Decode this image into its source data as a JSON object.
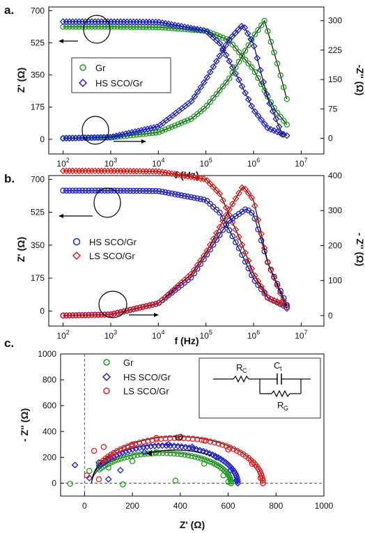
{
  "chart_data": [
    {
      "panel_label": "a.",
      "type": "scatter",
      "xlabel": "f (Hz)",
      "ylabel_left": "Z' (Ω)",
      "ylabel_right": "-Z'' (Ω)",
      "xscale": "log",
      "xlim": [
        50,
        30000000
      ],
      "ylim_left": [
        -80,
        720
      ],
      "ylim_right": [
        -40,
        335
      ],
      "x_tick_labels": [
        "10^2",
        "10^3",
        "10^4",
        "10^5",
        "10^6",
        "10^7"
      ],
      "y_left_tick_labels": [
        "0",
        "175",
        "350",
        "525",
        "700"
      ],
      "y_right_tick_labels": [
        "0",
        "75",
        "150",
        "225",
        "300"
      ],
      "legend_position": "middle-left",
      "series": [
        {
          "name": "Gr",
          "color": "#1e9e1e",
          "marker": "circle",
          "axis": "left",
          "quantity": "Z'",
          "x": [
            100,
            1000,
            10000,
            100000,
            300000,
            1000000,
            2000000,
            3000000,
            5000000
          ],
          "y": [
            612,
            612,
            610,
            590,
            540,
            380,
            230,
            150,
            80
          ]
        },
        {
          "name": "HS SCO/Gr",
          "color": "#2222cc",
          "marker": "diamond",
          "axis": "left",
          "quantity": "Z'",
          "x": [
            100,
            1000,
            10000,
            100000,
            200000,
            500000,
            1000000,
            2000000,
            5000000
          ],
          "y": [
            640,
            640,
            638,
            590,
            520,
            320,
            160,
            60,
            20
          ]
        },
        {
          "name": "Gr",
          "color": "#1e9e1e",
          "marker": "circle",
          "axis": "right",
          "quantity": "-Z''",
          "x": [
            100,
            1000,
            10000,
            50000,
            100000,
            300000,
            1000000,
            1700000,
            3000000,
            5000000
          ],
          "y": [
            0,
            2,
            15,
            50,
            80,
            150,
            260,
            300,
            200,
            100
          ]
        },
        {
          "name": "HS SCO/Gr",
          "color": "#2222cc",
          "marker": "diamond",
          "axis": "right",
          "quantity": "-Z''",
          "x": [
            100,
            1000,
            10000,
            50000,
            100000,
            300000,
            600000,
            1000000,
            2000000,
            4000000
          ],
          "y": [
            0,
            3,
            30,
            95,
            150,
            250,
            290,
            240,
            100,
            10
          ]
        }
      ]
    },
    {
      "panel_label": "b.",
      "type": "scatter",
      "xlabel": "f (Hz)",
      "ylabel_left": "Z' (Ω)",
      "ylabel_right": "- Z'' (Ω)",
      "xscale": "log",
      "xlim": [
        50,
        30000000
      ],
      "ylim_left": [
        -80,
        720
      ],
      "ylim_right": [
        -30,
        400
      ],
      "x_tick_labels": [
        "10^2",
        "10^3",
        "10^4",
        "10^5",
        "10^6",
        "10^7"
      ],
      "y_left_tick_labels": [
        "0",
        "175",
        "350",
        "525",
        "700"
      ],
      "y_right_tick_labels": [
        "0",
        "100",
        "200",
        "300",
        "400"
      ],
      "legend_position": "middle-left",
      "series": [
        {
          "name": "HS SCO/Gr",
          "color": "#2222cc",
          "marker": "circle",
          "axis": "left",
          "quantity": "Z'",
          "x": [
            100,
            1000,
            10000,
            100000,
            200000,
            500000,
            1000000,
            2000000,
            5000000
          ],
          "y": [
            640,
            640,
            638,
            590,
            520,
            330,
            170,
            70,
            20
          ]
        },
        {
          "name": "LS SCO/Gr",
          "color": "#e02020",
          "marker": "diamond",
          "axis": "left",
          "quantity": "Z'",
          "x": [
            100,
            1000,
            10000,
            100000,
            200000,
            500000,
            1000000,
            2000000,
            5000000
          ],
          "y": [
            745,
            745,
            742,
            700,
            620,
            390,
            200,
            70,
            30
          ]
        },
        {
          "name": "HS SCO/Gr",
          "color": "#2222cc",
          "marker": "circle",
          "axis": "right",
          "quantity": "-Z''",
          "x": [
            100,
            1000,
            10000,
            50000,
            100000,
            300000,
            700000,
            1000000,
            2000000,
            5000000
          ],
          "y": [
            0,
            3,
            35,
            110,
            170,
            270,
            305,
            290,
            150,
            30
          ]
        },
        {
          "name": "LS SCO/Gr",
          "color": "#e02020",
          "marker": "diamond",
          "axis": "right",
          "quantity": "-Z''",
          "x": [
            100,
            1000,
            10000,
            50000,
            100000,
            300000,
            600000,
            1000000,
            2000000,
            5000000
          ],
          "y": [
            0,
            3,
            35,
            120,
            180,
            300,
            370,
            330,
            150,
            20
          ]
        }
      ]
    },
    {
      "panel_label": "c.",
      "type": "scatter",
      "xlabel": "Z' (Ω)",
      "ylabel": "- Z'' (Ω)",
      "xlim": [
        -100,
        1000
      ],
      "ylim": [
        -100,
        1000
      ],
      "x_tick_labels": [
        "0",
        "200",
        "400",
        "600",
        "800",
        "1000"
      ],
      "y_tick_labels": [
        "0",
        "200",
        "400",
        "600",
        "800",
        "1000"
      ],
      "legend_position": "top-center",
      "annotation": "ω",
      "circuit_labels": [
        "R",
        "C",
        "C",
        "t",
        "R",
        "G"
      ],
      "series": [
        {
          "name": "Gr",
          "color": "#1e9e1e",
          "marker": "circle",
          "x": [
            -60,
            20,
            60,
            100,
            160,
            200,
            300,
            380,
            500,
            580,
            600,
            612
          ],
          "y": [
            -5,
            95,
            140,
            120,
            -10,
            170,
            240,
            20,
            150,
            60,
            10,
            0
          ]
        },
        {
          "name": "HS SCO/Gr",
          "color": "#2222cc",
          "marker": "diamond",
          "x": [
            -40,
            20,
            60,
            100,
            150,
            250,
            350,
            450,
            550,
            610,
            635,
            640
          ],
          "y": [
            140,
            40,
            160,
            30,
            100,
            240,
            300,
            280,
            200,
            100,
            20,
            0
          ]
        },
        {
          "name": "LS SCO/Gr",
          "color": "#e02020",
          "marker": "circle",
          "x": [
            10,
            40,
            60,
            80,
            120,
            200,
            300,
            400,
            500,
            600,
            700,
            735,
            745
          ],
          "y": [
            60,
            250,
            30,
            280,
            200,
            300,
            350,
            360,
            330,
            260,
            150,
            40,
            0
          ]
        }
      ]
    }
  ]
}
